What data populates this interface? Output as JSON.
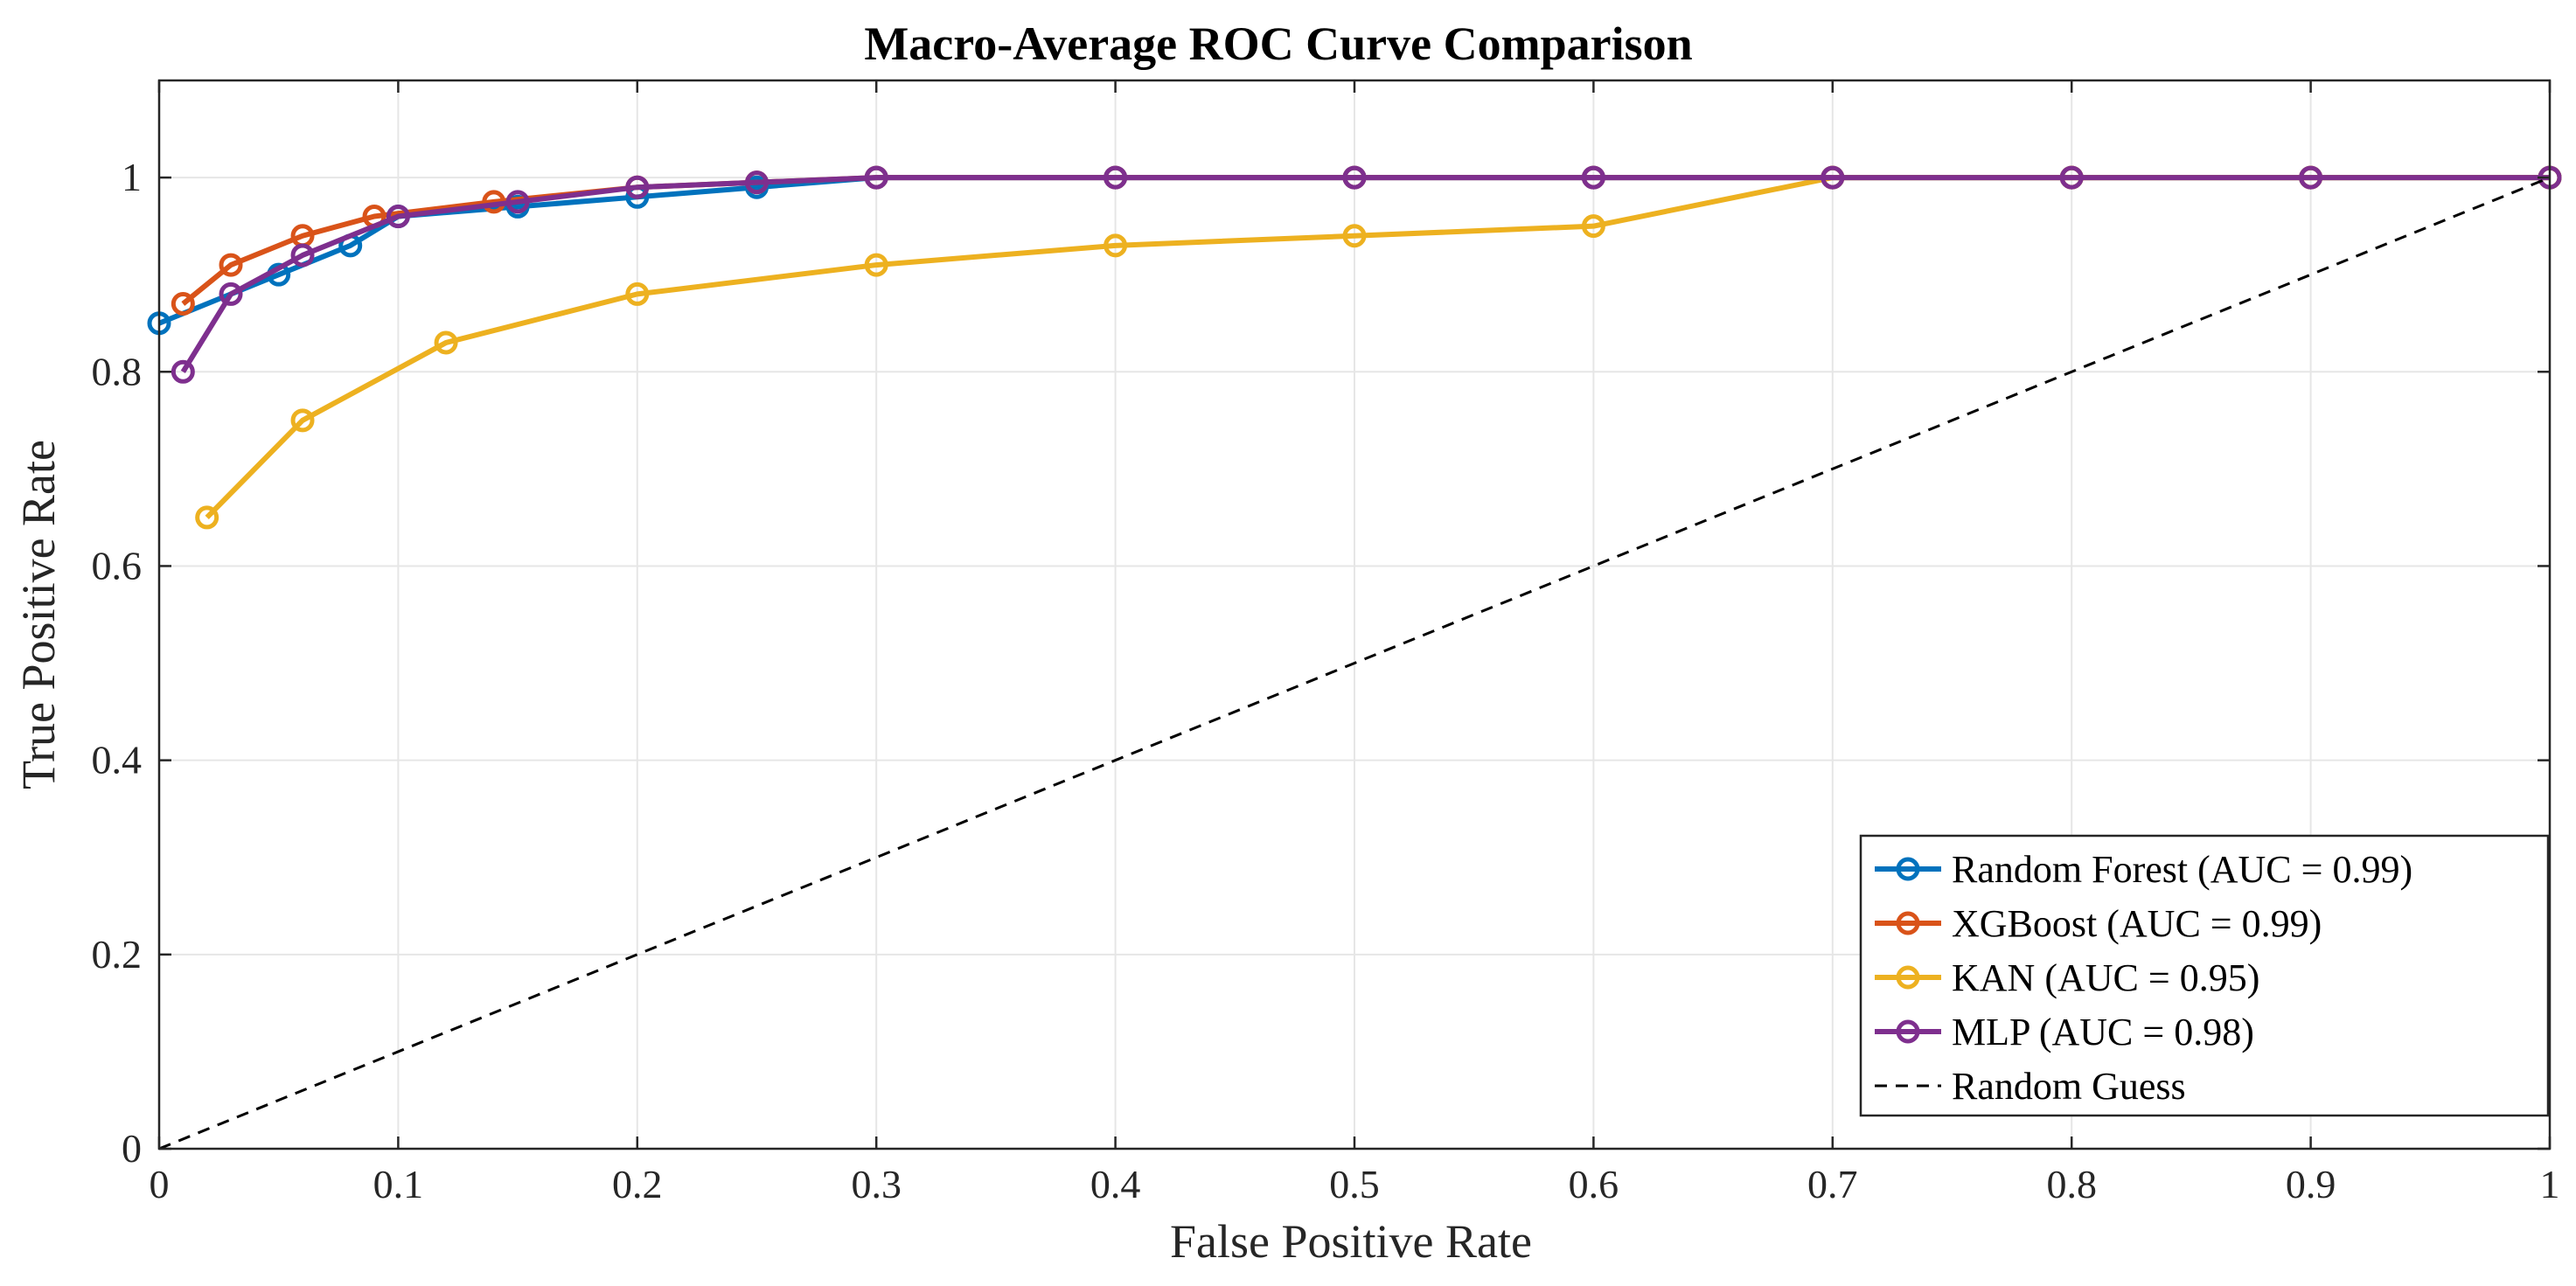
{
  "chart_data": {
    "type": "line",
    "title": "Macro-Average ROC Curve Comparison",
    "xlabel": "False Positive Rate",
    "ylabel": "True Positive Rate",
    "xlim": [
      0,
      1
    ],
    "ylim": [
      0,
      1.1
    ],
    "grid": true,
    "legend_position": "bottom-right",
    "xticks": [
      0,
      0.1,
      0.2,
      0.3,
      0.4,
      0.5,
      0.6,
      0.7,
      0.8,
      0.9,
      1
    ],
    "xtick_labels": [
      "0",
      "0.1",
      "0.2",
      "0.3",
      "0.4",
      "0.5",
      "0.6",
      "0.7",
      "0.8",
      "0.9",
      "1"
    ],
    "yticks": [
      0,
      0.2,
      0.4,
      0.6,
      0.8,
      1
    ],
    "ytick_labels": [
      "0",
      "0.2",
      "0.4",
      "0.6",
      "0.8",
      "1"
    ],
    "series": [
      {
        "name": "Random Forest (AUC = 0.99)",
        "color": "#0072BD",
        "marker": "circle",
        "x": [
          0,
          0.05,
          0.08,
          0.1,
          0.15,
          0.2,
          0.25,
          0.3,
          0.4,
          0.5,
          0.6,
          0.7,
          0.8,
          0.9,
          1
        ],
        "y": [
          0.85,
          0.9,
          0.93,
          0.96,
          0.97,
          0.98,
          0.99,
          1,
          1,
          1,
          1,
          1,
          1,
          1,
          1
        ]
      },
      {
        "name": "XGBoost (AUC = 0.99)",
        "color": "#D95319",
        "marker": "circle",
        "x": [
          0.01,
          0.03,
          0.06,
          0.09,
          0.14,
          0.2,
          0.25,
          0.3,
          0.4,
          0.5,
          0.6,
          0.7,
          0.8,
          0.9,
          1
        ],
        "y": [
          0.87,
          0.91,
          0.94,
          0.96,
          0.975,
          0.99,
          0.995,
          1,
          1,
          1,
          1,
          1,
          1,
          1,
          1
        ]
      },
      {
        "name": "KAN (AUC = 0.95)",
        "color": "#EDB120",
        "marker": "circle",
        "x": [
          0.02,
          0.06,
          0.12,
          0.2,
          0.3,
          0.4,
          0.5,
          0.6,
          0.7,
          0.8,
          0.9,
          1
        ],
        "y": [
          0.65,
          0.75,
          0.83,
          0.88,
          0.91,
          0.93,
          0.94,
          0.95,
          1,
          1,
          1,
          1
        ]
      },
      {
        "name": "MLP (AUC = 0.98)",
        "color": "#7E2F8E",
        "marker": "circle",
        "x": [
          0.01,
          0.03,
          0.06,
          0.1,
          0.15,
          0.2,
          0.25,
          0.3,
          0.4,
          0.5,
          0.6,
          0.7,
          0.8,
          0.9,
          1
        ],
        "y": [
          0.8,
          0.88,
          0.92,
          0.96,
          0.975,
          0.99,
          0.995,
          1,
          1,
          1,
          1,
          1,
          1,
          1,
          1
        ]
      },
      {
        "name": "Random Guess",
        "color": "#000000",
        "marker": "none",
        "dashed": true,
        "x": [
          0,
          1
        ],
        "y": [
          0,
          1
        ]
      }
    ]
  }
}
